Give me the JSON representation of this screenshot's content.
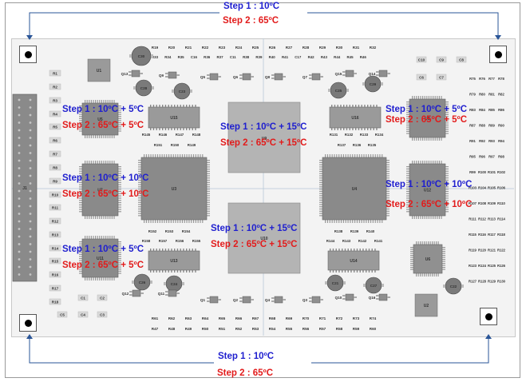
{
  "top_labels": {
    "step1": "Step 1 : 10ºC",
    "step2": "Step 2 : 65ºC"
  },
  "bottom_labels": {
    "step1": "Step 1 : 10ºC",
    "step2": "Step 2 : 65ºC"
  },
  "zones": {
    "u5_left": {
      "step1": "Step 1 : 10ºC + 5ºC",
      "step2": "Step 2 : 65ºC + 5ºC"
    },
    "u7_left": {
      "step1": "Step 1 : 10ºC + 10ºC",
      "step2": "Step 2 : 65ºC + 10ºC"
    },
    "u11_left": {
      "step1": "Step 1 : 10ºC + 5ºC",
      "step2": "Step 2 : 65ºC + 5ºC"
    },
    "u9_center": {
      "step1": "Step 1 : 10ºC + 15ºC",
      "step2": "Step 2 : 65ºC + 15ºC"
    },
    "u10_center": {
      "step1": "Step 1 : 10ºC + 15ºC",
      "step2": "Step 2 : 65ºC + 15ºC"
    },
    "u8_right": {
      "step1": "Step 1 : 10ºC + 5ºC",
      "step2": "Step 2 : 65ºC + 5ºC"
    },
    "u6_right": {
      "step1": "Step 1 : 10ºC + 10ºC",
      "step2": "Step 2 : 65ºC + 10ºC"
    }
  },
  "components": {
    "chips": [
      "U1",
      "U2",
      "U3",
      "U4",
      "U5",
      "U6",
      "U7",
      "U8",
      "U9",
      "U10",
      "U11",
      "U12",
      "U13",
      "U14",
      "U15",
      "U16",
      "J1"
    ],
    "resistors_left": [
      "R1",
      "R2",
      "R3",
      "R4",
      "R5",
      "R6",
      "R7",
      "R8",
      "R9",
      "R10",
      "R11",
      "R12",
      "R13",
      "R14",
      "R15",
      "R16",
      "R17",
      "R18"
    ],
    "resistors_top1": [
      "R19",
      "R20",
      "R21",
      "R22",
      "R23",
      "R24",
      "R25",
      "R26",
      "R27",
      "R28",
      "R29",
      "R30",
      "R31",
      "R32"
    ],
    "resistors_top2": [
      "R33",
      "R34",
      "R35",
      "C16",
      "R36",
      "R37",
      "C11",
      "R38",
      "R39",
      "R40",
      "R41",
      "C17",
      "R42",
      "R43",
      "R44",
      "R45",
      "R46"
    ],
    "resistors_bottom1": [
      "R61",
      "R62",
      "R63",
      "R64",
      "R65",
      "R66",
      "R67",
      "R68",
      "R69",
      "R70",
      "R71",
      "R72",
      "R73",
      "R74"
    ],
    "resistors_bottom2": [
      "R47",
      "R48",
      "R49",
      "R50",
      "R51",
      "R52",
      "R53",
      "R54",
      "R55",
      "R56",
      "R57",
      "R58",
      "R59",
      "R60"
    ],
    "r_right": [
      "R75",
      "R76",
      "R77",
      "R78",
      "R79",
      "R80",
      "R81",
      "R82",
      "R83",
      "R84",
      "R85",
      "R86",
      "R87",
      "R88",
      "R89",
      "R90",
      "R91",
      "R92",
      "R93",
      "R94",
      "R95",
      "R96",
      "R97",
      "R98",
      "R99",
      "R100",
      "R101",
      "R102",
      "R103",
      "R104",
      "R105",
      "R106",
      "R107",
      "R108",
      "R109",
      "R110",
      "R111",
      "R112",
      "R113",
      "R114",
      "R115",
      "R116",
      "R117",
      "R118",
      "R119",
      "R120",
      "R121",
      "R122",
      "R123",
      "R124",
      "R125",
      "R126",
      "R127",
      "R128",
      "R129",
      "R130"
    ],
    "mid_left_upper": [
      "R145",
      "R146",
      "R147",
      "R148",
      "R151",
      "R150",
      "R149"
    ],
    "mid_right_upper": [
      "R131",
      "R132",
      "R133",
      "R134",
      "R137",
      "R136",
      "R135"
    ],
    "mid_left_lower": [
      "R152",
      "R153",
      "R154",
      "R158",
      "R157",
      "R156",
      "R155"
    ],
    "mid_right_lower": [
      "R138",
      "R139",
      "R140",
      "R144",
      "R143",
      "R142",
      "R141"
    ],
    "transistors": [
      "Q1",
      "Q2",
      "Q3",
      "Q4",
      "Q5",
      "Q6",
      "Q7",
      "Q8",
      "Q9",
      "Q10",
      "Q11",
      "Q12",
      "Q13",
      "Q14",
      "Q15",
      "Q16"
    ],
    "capacitors": [
      "C1",
      "C2",
      "C3",
      "C4",
      "C5",
      "C6",
      "C7",
      "C8",
      "C9",
      "C10",
      "C12",
      "C13",
      "C14",
      "C15",
      "C18",
      "C19",
      "C20",
      "C21",
      "C22",
      "C23",
      "C24",
      "C25",
      "C26",
      "C27",
      "C28",
      "C29",
      "C30"
    ]
  }
}
